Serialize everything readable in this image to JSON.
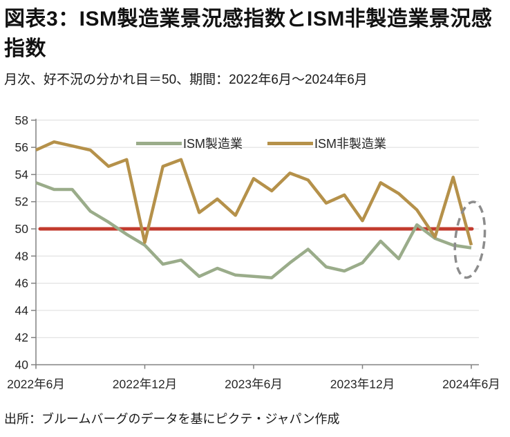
{
  "page": {
    "title": "図表3：ISM製造業景況感指数とISM非製造業景況感指数",
    "subtitle": "月次、好不況の分かれ目＝50、期間：2022年6月～2024年6月",
    "source": "出所：ブルームバーグのデータを基にピクテ・ジャパン作成"
  },
  "legend": {
    "items": [
      {
        "label": "ISM製造業",
        "color": "#9AAC8A"
      },
      {
        "label": "ISM非製造業",
        "color": "#B5914A"
      }
    ]
  },
  "chart_data": {
    "type": "line",
    "title": "図表3：ISM製造業景況感指数とISM非製造業景況感指数",
    "x_tick_labels": [
      "2022年6月",
      "2022年12月",
      "2023年6月",
      "2023年12月",
      "2024年6月"
    ],
    "x_tick_indices": [
      0,
      6,
      12,
      18,
      24
    ],
    "y_ticks": [
      58,
      56,
      54,
      52,
      50,
      48,
      46,
      44,
      42,
      40
    ],
    "ylim": [
      40,
      58
    ],
    "grid": "horizontal",
    "legend_position": "top-inside",
    "series": [
      {
        "name": "ISM製造業",
        "color": "#9AAC8A",
        "values": [
          53.4,
          52.9,
          52.9,
          51.3,
          50.5,
          49.6,
          48.8,
          47.4,
          47.7,
          46.5,
          47.1,
          46.6,
          46.5,
          46.4,
          47.5,
          48.5,
          47.2,
          46.9,
          47.5,
          49.1,
          47.8,
          50.3,
          49.3,
          48.8,
          48.6
        ]
      },
      {
        "name": "ISM非製造業",
        "color": "#B5914A",
        "values": [
          55.8,
          56.4,
          56.1,
          55.8,
          54.6,
          55.1,
          49.0,
          54.6,
          55.1,
          51.2,
          52.2,
          51.0,
          53.7,
          52.8,
          54.1,
          53.6,
          51.9,
          52.5,
          50.6,
          53.4,
          52.6,
          51.4,
          49.4,
          53.8,
          48.8
        ]
      }
    ],
    "reference_line": {
      "value": 50,
      "color": "#C23A2D"
    },
    "annotation_ellipse": {
      "center_month_index": 23.92,
      "center_value": 49.2,
      "rx_months": 0.8,
      "ry_values": 2.8,
      "color": "#8C8C8C",
      "style": "dashed"
    },
    "axis_color": "#808080",
    "grid_color": "#DCDCDC",
    "tick_label_color": "#262626"
  }
}
